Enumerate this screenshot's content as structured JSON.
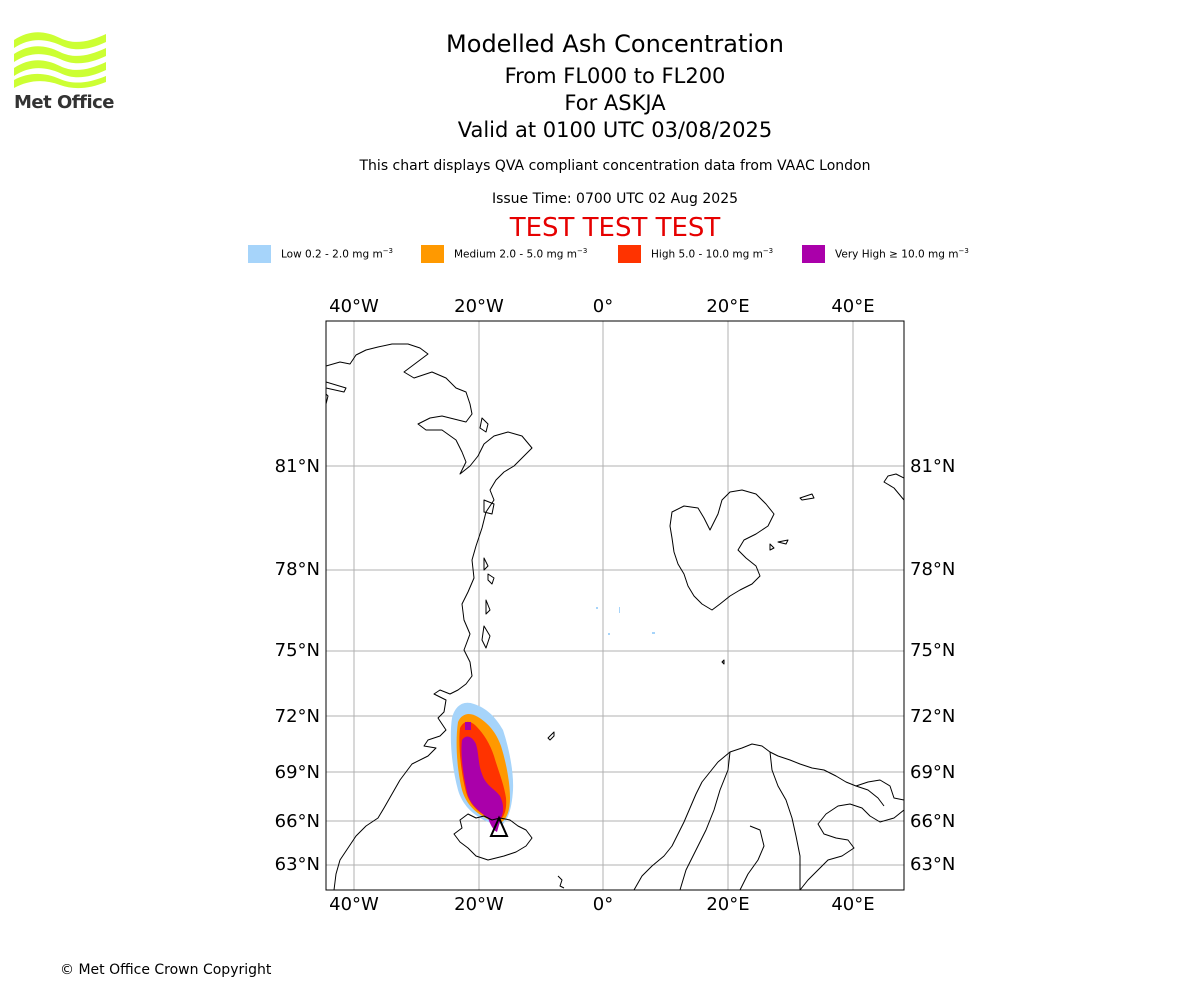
{
  "header": {
    "title": "Modelled Ash Concentration",
    "flight_levels": "From FL000 to FL200",
    "volcano": "For ASKJA",
    "valid_time": "Valid at 0100 UTC 03/08/2025",
    "description": "This chart displays QVA compliant concentration data from VAAC London",
    "issue_time": "Issue Time: 0700 UTC 02 Aug 2025",
    "test_banner": "TEST TEST TEST"
  },
  "logo": {
    "text": "Met Office",
    "icon": "met-office-wave-logo",
    "color": "#ccff33"
  },
  "legend": [
    {
      "label": "Low 0.2 - 2.0 mg m",
      "color": "#a6d4fa"
    },
    {
      "label": "Medium 2.0 - 5.0 mg m",
      "color": "#ff9900"
    },
    {
      "label": "High 5.0 - 10.0 mg m",
      "color": "#ff3300"
    },
    {
      "label": "Very High  ≥  10.0 mg m",
      "color": "#aa00aa"
    }
  ],
  "legend_unit_exponent": "−3",
  "map": {
    "lon_ticks": [
      "40°W",
      "20°W",
      "0°",
      "20°E",
      "40°E"
    ],
    "lat_ticks": [
      "81°N",
      "78°N",
      "75°N",
      "72°N",
      "69°N",
      "66°N",
      "63°N"
    ],
    "gridlines": true,
    "coastline_color": "#000000",
    "gridline_color": "#b0b0b0",
    "volcano_marker": "triangle"
  },
  "footer": {
    "copyright": "© Met Office Crown Copyright"
  }
}
